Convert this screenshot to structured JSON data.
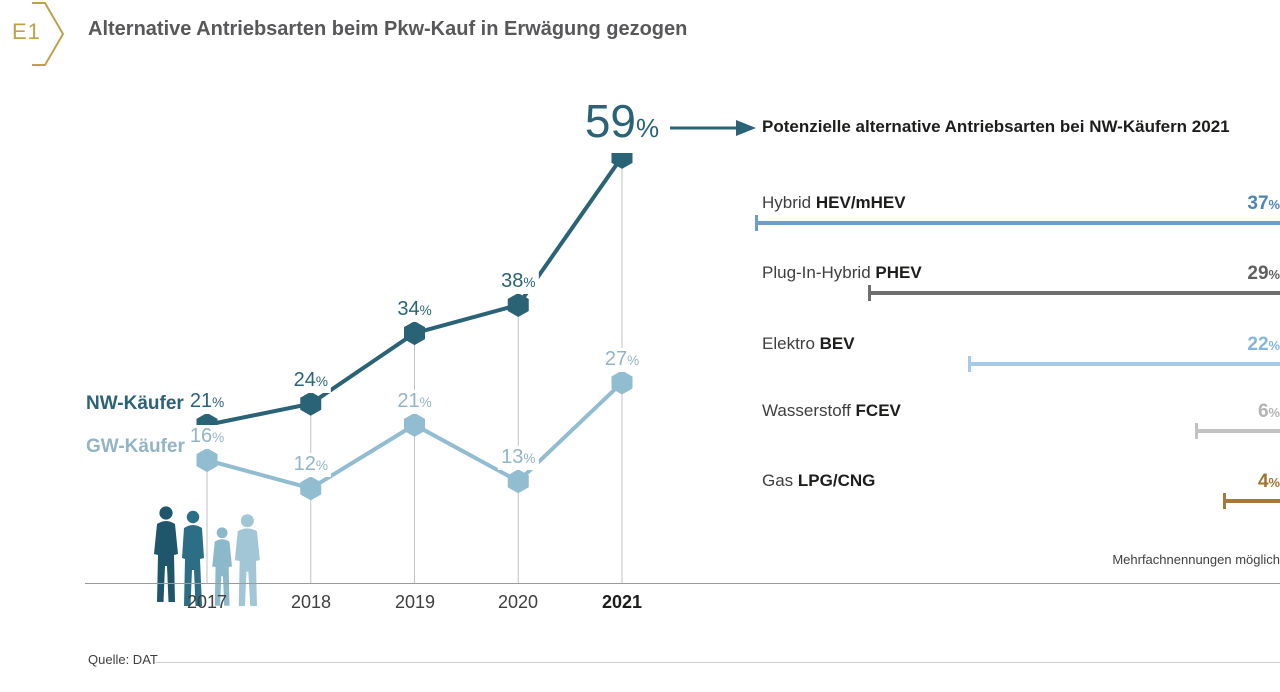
{
  "header": {
    "badge": "E1",
    "badge_color": "#bfa14a",
    "title": "Alternative Antriebsarten beim Pkw-Kauf in Erwägung gezogen"
  },
  "chart_data": [
    {
      "type": "line",
      "title": "",
      "categories": [
        "2017",
        "2018",
        "2019",
        "2020",
        "2021"
      ],
      "series": [
        {
          "name": "NW-Käufer",
          "values": [
            21,
            24,
            34,
            38,
            59
          ],
          "color": "#2a6375",
          "label_color": "#2a6375"
        },
        {
          "name": "GW-Käufer",
          "values": [
            16,
            12,
            21,
            13,
            27
          ],
          "color": "#92bccf",
          "label_color": "#92b4c5"
        }
      ],
      "unit": "%",
      "highlight": {
        "year": "2021",
        "value": 59
      },
      "xlabel": "",
      "ylabel": "",
      "ylim": [
        0,
        65
      ],
      "grid": "vertical-per-year",
      "legend_position": "left-of-first-points"
    },
    {
      "type": "bar",
      "title": "Potenzielle alternative Antriebsarten bei NW-Käufern 2021",
      "orientation": "horizontal-right-aligned",
      "rows": [
        {
          "label_regular": "Hybrid",
          "label_bold": "HEV/mHEV",
          "value": 37,
          "color": "#6f9ccb",
          "value_color": "#4d83b8"
        },
        {
          "label_regular": "Plug-In-Hybrid",
          "label_bold": "PHEV",
          "value": 29,
          "color": "#6e6e6e",
          "value_color": "#5f5f5f"
        },
        {
          "label_regular": "Elektro",
          "label_bold": "BEV",
          "value": 22,
          "color": "#a6cbe8",
          "value_color": "#85b6dc"
        },
        {
          "label_regular": "Wasserstoff",
          "label_bold": "FCEV",
          "value": 6,
          "color": "#c2c2c2",
          "value_color": "#b3b3b3"
        },
        {
          "label_regular": "Gas",
          "label_bold": "LPG/CNG",
          "value": 4,
          "color": "#a5793a",
          "value_color": "#a0742f"
        }
      ],
      "unit": "%",
      "note": "Mehrfachnennungen möglich"
    }
  ],
  "source": {
    "label": "Quelle: DAT"
  }
}
